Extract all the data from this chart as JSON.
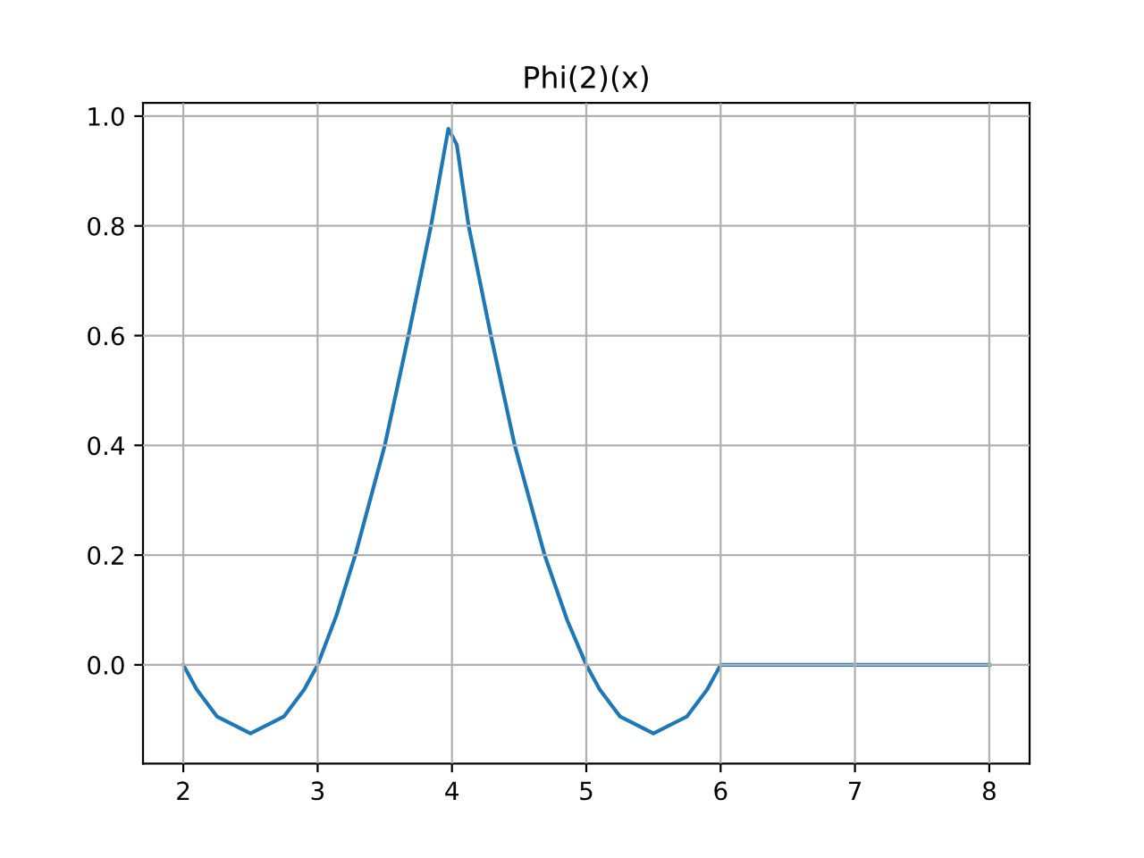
{
  "chart_data": {
    "type": "line",
    "title": "Phi(2)(x)",
    "x": [
      2,
      2.1,
      2.25,
      2.5,
      2.75,
      2.9,
      3,
      3.14,
      3.28,
      3.5,
      3.676,
      3.844,
      3.973,
      4.036,
      4.124,
      4.29,
      4.467,
      4.69,
      4.86,
      5,
      5.1,
      5.25,
      5.5,
      5.75,
      5.9,
      6,
      6.5,
      7,
      7.5,
      8
    ],
    "series": [
      {
        "color": "#1f77b4",
        "values": [
          0,
          -0.045,
          -0.094,
          -0.125,
          -0.094,
          -0.045,
          0,
          0.09,
          0.2,
          0.4,
          0.6,
          0.8,
          0.977,
          0.948,
          0.8,
          0.6,
          0.4,
          0.2,
          0.08,
          0,
          -0.045,
          -0.094,
          -0.125,
          -0.094,
          -0.045,
          0,
          0,
          0,
          0,
          0
        ]
      }
    ],
    "xlim": [
      1.7,
      8.3
    ],
    "ylim": [
      -0.18,
      1.024
    ],
    "xticks": [
      2,
      3,
      4,
      5,
      6,
      7,
      8
    ],
    "yticks": [
      {
        "value": 0,
        "label": "0.0"
      },
      {
        "value": 0.2,
        "label": "0.2"
      },
      {
        "value": 0.4,
        "label": "0.4"
      },
      {
        "value": 0.6,
        "label": "0.6"
      },
      {
        "value": 0.8,
        "label": "0.8"
      },
      {
        "value": 1,
        "label": "1.0"
      }
    ],
    "grid": true,
    "marker": "none",
    "line_style": "solid"
  }
}
